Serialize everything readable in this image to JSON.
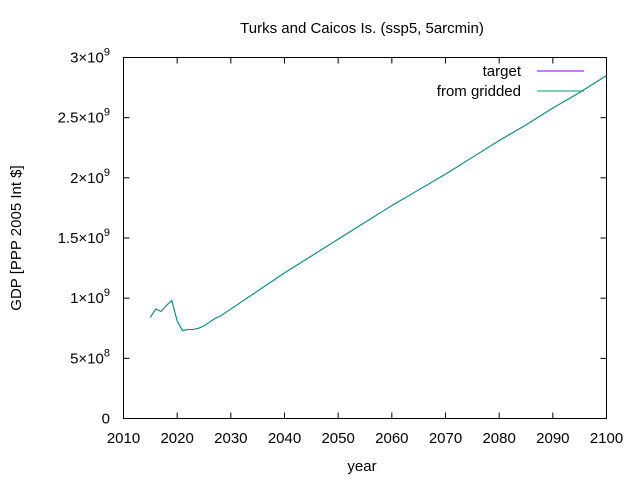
{
  "chart_data": {
    "type": "line",
    "title": "Turks and Caicos Is. (ssp5, 5arcmin)",
    "xlabel": "year",
    "ylabel": "GDP [PPP 2005 Int $]",
    "xlim": [
      2010,
      2100
    ],
    "ylim": [
      0,
      3000000000
    ],
    "xticks": [
      2010,
      2020,
      2030,
      2040,
      2050,
      2060,
      2070,
      2080,
      2090,
      2100
    ],
    "yticks": [
      {
        "value": 0,
        "mantissa": "0",
        "exponent": ""
      },
      {
        "value": 500000000,
        "mantissa": "5×10",
        "exponent": "8"
      },
      {
        "value": 1000000000,
        "mantissa": "1×10",
        "exponent": "9"
      },
      {
        "value": 1500000000,
        "mantissa": "1.5×10",
        "exponent": "9"
      },
      {
        "value": 2000000000,
        "mantissa": "2×10",
        "exponent": "9"
      },
      {
        "value": 2500000000,
        "mantissa": "2.5×10",
        "exponent": "9"
      },
      {
        "value": 3000000000,
        "mantissa": "3×10",
        "exponent": "9"
      }
    ],
    "grid": false,
    "legend_position": "top-right",
    "series": [
      {
        "name": "target",
        "color": "#9400d3",
        "x": [
          2015,
          2016,
          2017,
          2018,
          2019,
          2020,
          2021,
          2022,
          2023,
          2024,
          2025,
          2026,
          2027,
          2028,
          2029,
          2030,
          2035,
          2040,
          2045,
          2050,
          2055,
          2060,
          2065,
          2070,
          2075,
          2080,
          2085,
          2090,
          2095,
          2100
        ],
        "y": [
          840000000,
          910000000,
          890000000,
          940000000,
          980000000,
          810000000,
          730000000,
          740000000,
          740000000,
          750000000,
          770000000,
          800000000,
          830000000,
          850000000,
          880000000,
          910000000,
          1060000000,
          1210000000,
          1350000000,
          1490000000,
          1630000000,
          1770000000,
          1900000000,
          2030000000,
          2170000000,
          2310000000,
          2440000000,
          2580000000,
          2710000000,
          2850000000
        ]
      },
      {
        "name": "from gridded",
        "color": "#009e73",
        "x": [
          2015,
          2016,
          2017,
          2018,
          2019,
          2020,
          2021,
          2022,
          2023,
          2024,
          2025,
          2026,
          2027,
          2028,
          2029,
          2030,
          2035,
          2040,
          2045,
          2050,
          2055,
          2060,
          2065,
          2070,
          2075,
          2080,
          2085,
          2090,
          2095,
          2100
        ],
        "y": [
          840000000,
          910000000,
          890000000,
          940000000,
          980000000,
          810000000,
          730000000,
          740000000,
          740000000,
          750000000,
          770000000,
          800000000,
          830000000,
          850000000,
          880000000,
          910000000,
          1060000000,
          1210000000,
          1350000000,
          1490000000,
          1630000000,
          1770000000,
          1900000000,
          2030000000,
          2170000000,
          2310000000,
          2440000000,
          2580000000,
          2710000000,
          2850000000
        ]
      }
    ]
  }
}
